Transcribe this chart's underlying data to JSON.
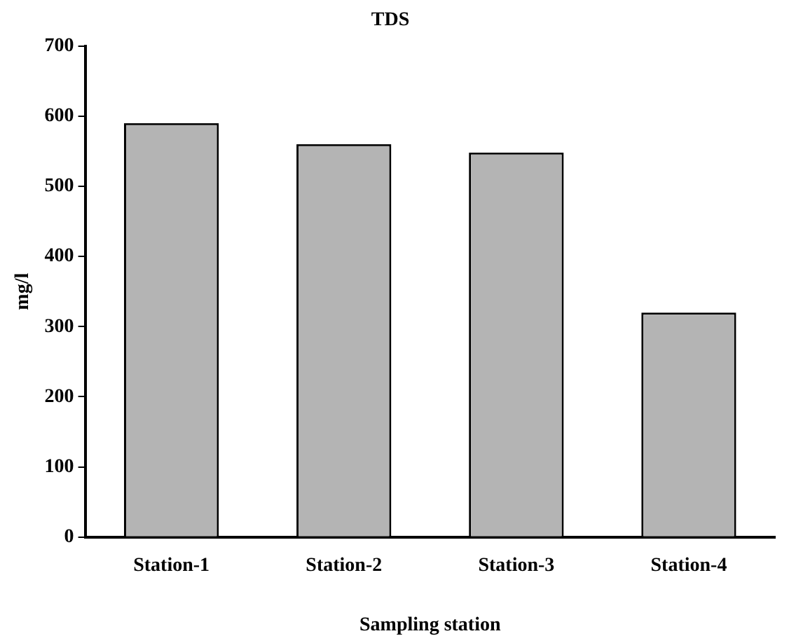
{
  "chart_data": {
    "type": "bar",
    "title": "TDS",
    "xlabel": "Sampling station",
    "ylabel": "mg/l",
    "categories": [
      "Station-1",
      "Station-2",
      "Station-3",
      "Station-4"
    ],
    "values": [
      590,
      560,
      548,
      320
    ],
    "color": "#b4b4b4",
    "ylim": [
      0,
      700
    ],
    "yticks": [
      0,
      100,
      200,
      300,
      400,
      500,
      600,
      700
    ],
    "grid": false,
    "legend": false
  }
}
